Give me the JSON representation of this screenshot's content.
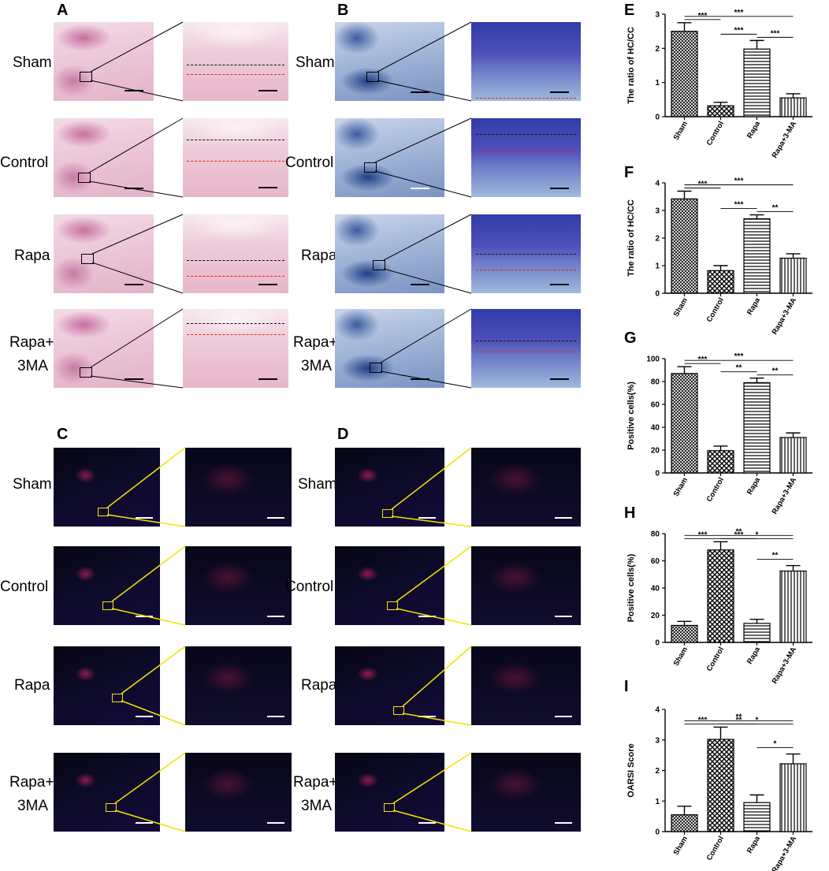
{
  "panels": {
    "A": "A",
    "B": "B",
    "C": "C",
    "D": "D",
    "E": "E",
    "F": "F",
    "G": "G",
    "H": "H",
    "I": "I"
  },
  "row_labels": {
    "sham": "Sham",
    "control": "Control",
    "rapa": "Rapa",
    "rapa3ma_line1": "Rapa+",
    "rapa3ma_line2": "3MA"
  },
  "colors": {
    "he_stain": "#eecbd9",
    "tb_stain": "#4f4fb8",
    "fluor_bg": "#0d0b2a",
    "scale_bar_histo": "#000000",
    "scale_bar_fluor": "#ffffff",
    "zoom_box_fluor": "#f2e400",
    "dash_black": "#111111",
    "dash_red": "#e8201c"
  },
  "chart_data": [
    {
      "id": "E",
      "type": "bar",
      "categories": [
        "Sham",
        "Control",
        "Rapa",
        "Rapa+3-MA"
      ],
      "values": [
        2.5,
        0.32,
        1.98,
        0.55
      ],
      "errors": [
        0.25,
        0.1,
        0.25,
        0.12
      ],
      "ylabel": "The ratio of HC/CC",
      "ylim": [
        0,
        3
      ],
      "yticks": [
        "0",
        "1",
        "2",
        "3"
      ],
      "brackets": [
        {
          "from": 0,
          "to": 1,
          "label": "***"
        },
        {
          "from": 0,
          "to": 3,
          "label": "***"
        },
        {
          "from": 1,
          "to": 2,
          "label": "***"
        },
        {
          "from": 2,
          "to": 3,
          "label": "***"
        }
      ]
    },
    {
      "id": "F",
      "type": "bar",
      "categories": [
        "Sham",
        "Control",
        "Rapa",
        "Rapa+3-MA"
      ],
      "values": [
        3.42,
        0.82,
        2.7,
        1.27
      ],
      "errors": [
        0.28,
        0.18,
        0.14,
        0.16
      ],
      "ylabel": "The ratio of HC/CC",
      "ylim": [
        0,
        4
      ],
      "yticks": [
        "0",
        "1",
        "2",
        "3",
        "4"
      ],
      "brackets": [
        {
          "from": 0,
          "to": 1,
          "label": "***"
        },
        {
          "from": 0,
          "to": 3,
          "label": "***"
        },
        {
          "from": 1,
          "to": 2,
          "label": "***"
        },
        {
          "from": 2,
          "to": 3,
          "label": "**"
        }
      ]
    },
    {
      "id": "G",
      "type": "bar",
      "categories": [
        "Sham",
        "Control",
        "Rapa",
        "Rapa+3-MA"
      ],
      "values": [
        87,
        19.5,
        79,
        31
      ],
      "errors": [
        6,
        4,
        4,
        4
      ],
      "ylabel": "Positive cells(%)",
      "ylim": [
        0,
        100
      ],
      "yticks": [
        "0",
        "20",
        "40",
        "60",
        "80",
        "100"
      ],
      "brackets": [
        {
          "from": 0,
          "to": 1,
          "label": "***"
        },
        {
          "from": 0,
          "to": 3,
          "label": "***"
        },
        {
          "from": 1,
          "to": 2,
          "label": "**"
        },
        {
          "from": 2,
          "to": 3,
          "label": "**"
        }
      ]
    },
    {
      "id": "H",
      "type": "bar",
      "categories": [
        "Sham",
        "Control",
        "Rapa",
        "Rapa+3-MA"
      ],
      "values": [
        12.5,
        68,
        14,
        52.5
      ],
      "errors": [
        3,
        6,
        3,
        4
      ],
      "ylabel": "Positive cells(%)",
      "ylim": [
        0,
        80
      ],
      "yticks": [
        "0",
        "20",
        "40",
        "60",
        "80"
      ],
      "brackets": [
        {
          "from": 0,
          "to": 1,
          "label": "***"
        },
        {
          "from": 1,
          "to": 3,
          "label": "*"
        },
        {
          "from": 1,
          "to": 2,
          "label": "***"
        },
        {
          "from": 0,
          "to": 3,
          "label": "**"
        },
        {
          "from": 2,
          "to": 3,
          "label": "**"
        }
      ]
    },
    {
      "id": "I",
      "type": "bar",
      "categories": [
        "Sham",
        "Control",
        "Rapa",
        "Rapa+3-MA"
      ],
      "values": [
        0.55,
        3.02,
        0.95,
        2.22
      ],
      "errors": [
        0.28,
        0.4,
        0.25,
        0.32
      ],
      "ylabel": "OARSI Score",
      "ylim": [
        0,
        4
      ],
      "yticks": [
        "0",
        "1",
        "2",
        "3",
        "4"
      ],
      "brackets": [
        {
          "from": 0,
          "to": 1,
          "label": "***"
        },
        {
          "from": 1,
          "to": 3,
          "label": "*"
        },
        {
          "from": 1,
          "to": 2,
          "label": "**"
        },
        {
          "from": 0,
          "to": 3,
          "label": "**"
        },
        {
          "from": 2,
          "to": 3,
          "label": "*"
        }
      ]
    }
  ]
}
